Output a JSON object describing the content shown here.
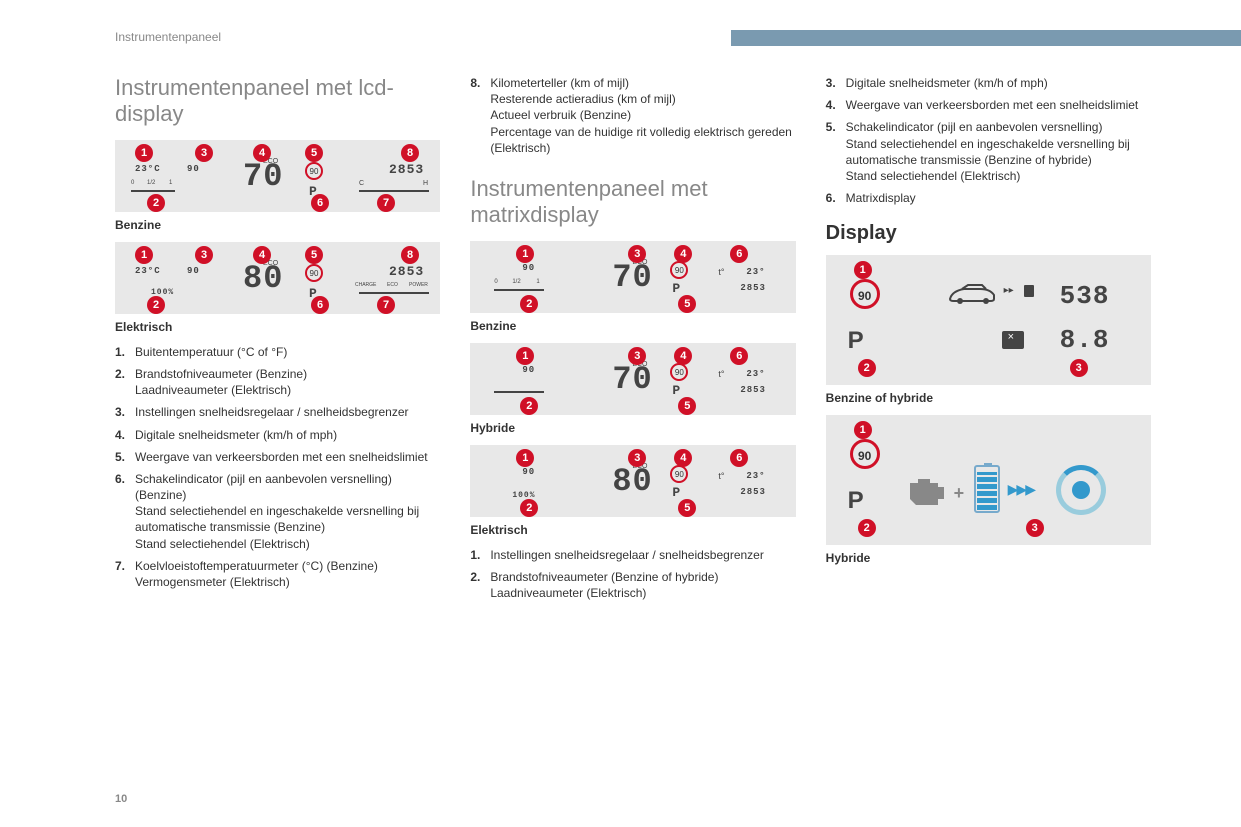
{
  "breadcrumb": "Instrumentenpaneel",
  "page_number": "10",
  "header_bar_color": "#7a9ab0",
  "badge_color": "#d01027",
  "panel_bg": "#e8e8e8",
  "col1": {
    "title": "Instrumentenpaneel met lcd-display",
    "panel_benzine": {
      "badges": [
        [
          1,
          20,
          4
        ],
        [
          2,
          32,
          54
        ],
        [
          3,
          80,
          4
        ],
        [
          4,
          138,
          4
        ],
        [
          5,
          190,
          4
        ],
        [
          6,
          196,
          54
        ],
        [
          7,
          262,
          54
        ],
        [
          8,
          286,
          4
        ]
      ],
      "temp": "23°C",
      "cruise": "90",
      "speed": "70",
      "eco": "ECO",
      "sign": "90",
      "gear": "P",
      "odo": "2853",
      "coolant_left": "C",
      "coolant_right": "H"
    },
    "caption_benzine": "Benzine",
    "panel_elektrisch": {
      "badges": [
        [
          1,
          20,
          4
        ],
        [
          2,
          32,
          54
        ],
        [
          3,
          80,
          4
        ],
        [
          4,
          138,
          4
        ],
        [
          5,
          190,
          4
        ],
        [
          6,
          196,
          54
        ],
        [
          7,
          262,
          54
        ],
        [
          8,
          286,
          4
        ]
      ],
      "temp": "23°C",
      "cruise": "90",
      "battery_pct": "100%",
      "speed": "80",
      "eco": "ECO",
      "sign": "90",
      "gear": "P",
      "odo": "2853",
      "charge": "CHARGE",
      "eco2": "ECO",
      "power": "POWER"
    },
    "caption_elektrisch": "Elektrisch",
    "legend": [
      {
        "n": "1.",
        "t": "Buitentemperatuur (°C of °F)"
      },
      {
        "n": "2.",
        "t": "Brandstofniveaumeter (Benzine)\nLaadniveaumeter (Elektrisch)"
      },
      {
        "n": "3.",
        "t": "Instellingen snelheidsregelaar / snelheidsbegrenzer"
      },
      {
        "n": "4.",
        "t": "Digitale snelheidsmeter (km/h of mph)"
      },
      {
        "n": "5.",
        "t": "Weergave van verkeersborden met een snelheidslimiet"
      },
      {
        "n": "6.",
        "t": "Schakelindicator (pijl en aanbevolen versnelling) (Benzine)\nStand selectiehendel en ingeschakelde versnelling bij automatische transmissie (Benzine)\nStand selectiehendel (Elektrisch)"
      },
      {
        "n": "7.",
        "t": "Koelvloeistoftemperatuurmeter (°C) (Benzine)\nVermogensmeter (Elektrisch)"
      }
    ]
  },
  "col2": {
    "legend_top": [
      {
        "n": "8.",
        "t": "Kilometerteller (km of mijl)\nResterende actieradius (km of mijl)\nActueel verbruik (Benzine)\nPercentage van de huidige rit volledig elektrisch gereden (Elektrisch)"
      }
    ],
    "title": "Instrumentenpaneel met matrixdisplay",
    "panel_benzine": {
      "badges": [
        [
          1,
          46,
          4
        ],
        [
          2,
          50,
          54
        ],
        [
          3,
          158,
          4
        ],
        [
          4,
          204,
          4
        ],
        [
          5,
          208,
          54
        ],
        [
          6,
          260,
          4
        ]
      ],
      "cruise": "90",
      "speed": "70",
      "eco": "ECO",
      "sign": "90",
      "gear": "P",
      "temp_icon": "t°",
      "temp": "23°",
      "odo": "2853"
    },
    "caption_benzine": "Benzine",
    "panel_hybride": {
      "badges": [
        [
          1,
          46,
          4
        ],
        [
          2,
          50,
          54
        ],
        [
          3,
          158,
          4
        ],
        [
          4,
          204,
          4
        ],
        [
          5,
          208,
          54
        ],
        [
          6,
          260,
          4
        ]
      ],
      "cruise": "90",
      "speed": "70",
      "eco": "ECO",
      "sign": "90",
      "gear": "P",
      "temp_icon": "t°",
      "temp": "23°",
      "odo": "2853"
    },
    "caption_hybride": "Hybride",
    "panel_elektrisch": {
      "badges": [
        [
          1,
          46,
          4
        ],
        [
          2,
          50,
          54
        ],
        [
          3,
          158,
          4
        ],
        [
          4,
          204,
          4
        ],
        [
          5,
          208,
          54
        ],
        [
          6,
          260,
          4
        ]
      ],
      "cruise": "90",
      "battery_pct": "100%",
      "speed": "80",
      "eco": "ECO",
      "sign": "90",
      "gear": "P",
      "temp_icon": "t°",
      "temp": "23°",
      "odo": "2853"
    },
    "caption_elektrisch": "Elektrisch",
    "legend": [
      {
        "n": "1.",
        "t": "Instellingen snelheidsregelaar / snelheidsbegrenzer"
      },
      {
        "n": "2.",
        "t": "Brandstofniveaumeter (Benzine of hybride)\nLaadniveaumeter (Elektrisch)"
      }
    ]
  },
  "col3": {
    "legend_top": [
      {
        "n": "3.",
        "t": "Digitale snelheidsmeter (km/h of mph)"
      },
      {
        "n": "4.",
        "t": "Weergave van verkeersborden met een snelheidslimiet"
      },
      {
        "n": "5.",
        "t": "Schakelindicator (pijl en aanbevolen versnelling)\nStand selectiehendel en ingeschakelde versnelling bij automatische transmissie (Benzine of hybride)\nStand selectiehendel (Elektrisch)"
      },
      {
        "n": "6.",
        "t": "Matrixdisplay"
      }
    ],
    "display_title": "Display",
    "panel_benzhyb": {
      "badges": [
        [
          1,
          28,
          6
        ],
        [
          2,
          32,
          104
        ],
        [
          3,
          244,
          104
        ]
      ],
      "sign": "90",
      "gear": "P",
      "range": "538",
      "consumption": "8.8"
    },
    "caption_benzhyb": "Benzine of hybride",
    "panel_hybride": {
      "badges": [
        [
          1,
          28,
          6
        ],
        [
          2,
          32,
          104
        ],
        [
          3,
          200,
          104
        ]
      ],
      "sign": "90",
      "gear": "P"
    },
    "caption_hybride": "Hybride"
  }
}
